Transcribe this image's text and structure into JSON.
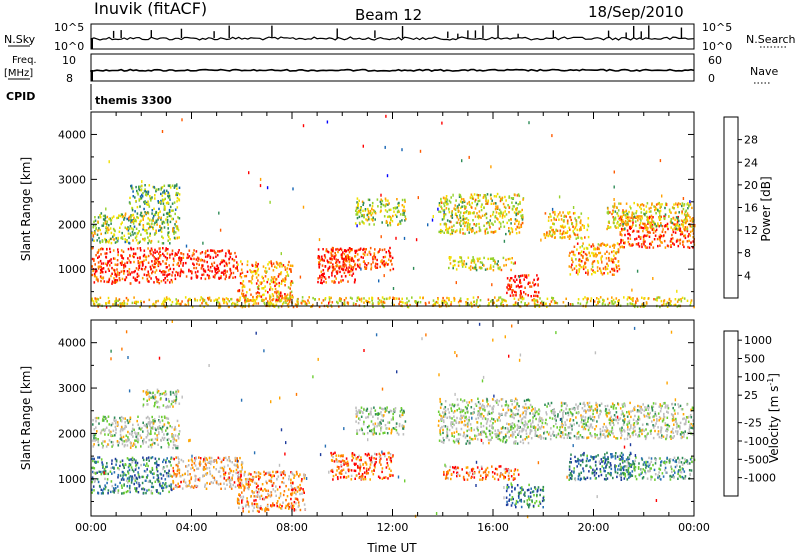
{
  "header": {
    "station": "Inuvik (fitACF)",
    "beam": "Beam 12",
    "date": "18/Sep/2010"
  },
  "top_panels": {
    "nsky_label": "N.Sky",
    "nsky_ticks": [
      "10^5",
      "10^0"
    ],
    "nsearch_label": "N.Search",
    "nsearch_ticks": [
      "10^5",
      "10^0"
    ],
    "freq_label": "Freq.",
    "freq_unit": "[MHz]",
    "freq_ticks": [
      "10",
      "8"
    ],
    "nave_label": "Nave",
    "nave_ticks": [
      "60",
      "0"
    ],
    "cpid_label": "CPID",
    "cpid_value": "themis 3300"
  },
  "chart_data": [
    {
      "type": "heatmap",
      "name": "power",
      "ylabel": "Slant Range [km]",
      "ylim": [
        180,
        4500
      ],
      "yticks": [
        "4000",
        "3000",
        "2000",
        "1000"
      ],
      "colorbar": {
        "label": "Power [dB]",
        "ticks": [
          "28",
          "24",
          "20",
          "16",
          "12",
          "8",
          "4"
        ],
        "colors": [
          "#ff0000",
          "#ff5a00",
          "#ffa000",
          "#f0e000",
          "#96d22d",
          "#2e8b57",
          "#1464b4",
          "#0000ff"
        ]
      },
      "echo_bands": [
        {
          "t": [
            0,
            3.2
          ],
          "r": [
            700,
            1500
          ],
          "level": 0.9
        },
        {
          "t": [
            3.2,
            5.8
          ],
          "r": [
            800,
            1450
          ],
          "level": 0.95
        },
        {
          "t": [
            5.8,
            8.0
          ],
          "r": [
            300,
            1200
          ],
          "level": 0.7
        },
        {
          "t": [
            0,
            3.5
          ],
          "r": [
            1600,
            2300
          ],
          "level": 0.45
        },
        {
          "t": [
            1.5,
            3.5
          ],
          "r": [
            2300,
            2900
          ],
          "level": 0.4
        },
        {
          "t": [
            9.5,
            12.0
          ],
          "r": [
            1000,
            1500
          ],
          "level": 0.85
        },
        {
          "t": [
            9.0,
            10.5
          ],
          "r": [
            700,
            1500
          ],
          "level": 0.9
        },
        {
          "t": [
            10.5,
            12.5
          ],
          "r": [
            2000,
            2600
          ],
          "level": 0.5
        },
        {
          "t": [
            13.8,
            17.2
          ],
          "r": [
            1800,
            2700
          ],
          "level": 0.55
        },
        {
          "t": [
            14.2,
            16.8
          ],
          "r": [
            1000,
            1300
          ],
          "level": 0.55
        },
        {
          "t": [
            16.5,
            17.8
          ],
          "r": [
            400,
            900
          ],
          "level": 0.95
        },
        {
          "t": [
            18.0,
            19.8
          ],
          "r": [
            1700,
            2300
          ],
          "level": 0.6
        },
        {
          "t": [
            19.0,
            21.0
          ],
          "r": [
            900,
            1600
          ],
          "level": 0.7
        },
        {
          "t": [
            21.0,
            24.0
          ],
          "r": [
            1500,
            2200
          ],
          "level": 0.85
        },
        {
          "t": [
            20.5,
            24.0
          ],
          "r": [
            1900,
            2500
          ],
          "level": 0.55
        },
        {
          "t": [
            0,
            24.0
          ],
          "r": [
            180,
            400
          ],
          "level": 0.6
        }
      ]
    },
    {
      "type": "heatmap",
      "name": "velocity",
      "ylabel": "Slant Range [km]",
      "xlabel": "Time UT",
      "ylim": [
        180,
        4500
      ],
      "yticks": [
        "4000",
        "3000",
        "2000",
        "1000"
      ],
      "xticks": [
        "00:00",
        "04:00",
        "08:00",
        "12:00",
        "16:00",
        "20:00",
        "00:00"
      ],
      "colorbar": {
        "label": "Velocity [m s",
        "label_sup": "-1",
        "label_end": "]",
        "ticks": [
          "1000",
          "500",
          "100",
          "25",
          "-25",
          "-100",
          "-500",
          "-1000"
        ],
        "colors": [
          "#1e3c9c",
          "#2870b4",
          "#2e8b57",
          "#6ccd32",
          "#bebebe",
          "#bebebe",
          "#ffa500",
          "#ff7800",
          "#ff0000"
        ]
      },
      "echo_bands": [
        {
          "t": [
            0,
            3.2
          ],
          "r": [
            700,
            1500
          ],
          "level": 0.75
        },
        {
          "t": [
            3.2,
            6.0
          ],
          "r": [
            800,
            1500
          ],
          "level": 0.3
        },
        {
          "t": [
            5.8,
            8.5
          ],
          "r": [
            300,
            1200
          ],
          "level": 0.25
        },
        {
          "t": [
            0,
            3.5
          ],
          "r": [
            1700,
            2400
          ],
          "level": 0.5
        },
        {
          "t": [
            2.0,
            3.5
          ],
          "r": [
            2600,
            3000
          ],
          "level": 0.5
        },
        {
          "t": [
            9.5,
            12.0
          ],
          "r": [
            1000,
            1600
          ],
          "level": 0.15
        },
        {
          "t": [
            10.5,
            12.5
          ],
          "r": [
            2000,
            2600
          ],
          "level": 0.5
        },
        {
          "t": [
            13.8,
            17.5
          ],
          "r": [
            1800,
            2800
          ],
          "level": 0.5
        },
        {
          "t": [
            14.0,
            17.0
          ],
          "r": [
            1000,
            1300
          ],
          "level": 0.15
        },
        {
          "t": [
            16.5,
            18.0
          ],
          "r": [
            400,
            900
          ],
          "level": 0.8
        },
        {
          "t": [
            17.5,
            24.0
          ],
          "r": [
            1900,
            2700
          ],
          "level": 0.5
        },
        {
          "t": [
            19.0,
            21.5
          ],
          "r": [
            1000,
            1600
          ],
          "level": 0.85
        },
        {
          "t": [
            21.0,
            24.0
          ],
          "r": [
            1000,
            1500
          ],
          "level": 0.65
        }
      ]
    }
  ]
}
